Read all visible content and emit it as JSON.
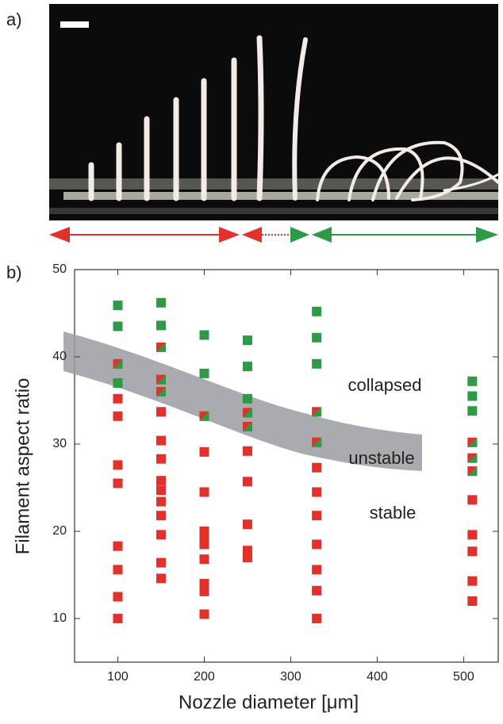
{
  "figure": {
    "panel_labels": [
      "a)",
      "b)"
    ]
  },
  "chart_data": {
    "type": "scatter",
    "x_label": "Nozzle diameter [μm]",
    "y_label": "Filament aspect ratio",
    "annotations": [
      "collapsed",
      "unstable",
      "stable"
    ],
    "xlim": [
      50,
      540
    ],
    "xticks": [
      100,
      200,
      300,
      400,
      500
    ],
    "ylim": [
      5,
      50
    ],
    "yticks": [
      10,
      20,
      30,
      40,
      50
    ],
    "series": [
      {
        "color": "#e2312b",
        "x": [
          100,
          100,
          100,
          100,
          100,
          100,
          100,
          100,
          150,
          150,
          150,
          150,
          150,
          150,
          150,
          150,
          150,
          150,
          200,
          200,
          200,
          200,
          200,
          200,
          200,
          200,
          200,
          250,
          250,
          250,
          250,
          250,
          330,
          330,
          330,
          330,
          330,
          330,
          330,
          510,
          510,
          510,
          510,
          510
        ],
        "values": [
          35.2,
          33.2,
          27.6,
          25.5,
          18.3,
          15.6,
          12.5,
          10,
          33.7,
          30.4,
          28.3,
          25.8,
          24.7,
          21.8,
          19.6,
          16.4,
          14.6,
          23.4,
          29.1,
          24.5,
          20,
          19.2,
          18.5,
          16.8,
          14,
          13.1,
          10.5,
          29.2,
          25.7,
          20.8,
          17.8,
          17,
          27.3,
          24.5,
          21.8,
          18.5,
          15.6,
          13.2,
          10,
          23.6,
          19.6,
          17.7,
          14.3,
          12
        ]
      },
      {
        "color": "#2e9a48",
        "x": [
          100,
          100,
          100,
          150,
          150,
          200,
          200,
          250,
          250,
          250,
          330,
          330,
          330,
          510,
          510,
          510
        ],
        "values": [
          45.9,
          43.5,
          37,
          46.2,
          43.6,
          42.5,
          38.1,
          41.9,
          38.9,
          35.2,
          45.2,
          42.2,
          39.2,
          37.2,
          35.5,
          33.8
        ]
      },
      {
        "color": "#e2312b",
        "color2": "#2e9a48",
        "x": [
          100,
          150,
          150,
          150,
          200,
          250,
          250,
          330,
          330,
          510,
          510,
          510
        ],
        "values": [
          39.2,
          41.1,
          37.4,
          36,
          33.2,
          33.6,
          32,
          33.7,
          30.2,
          30.2,
          28.4,
          26.9
        ]
      }
    ]
  }
}
